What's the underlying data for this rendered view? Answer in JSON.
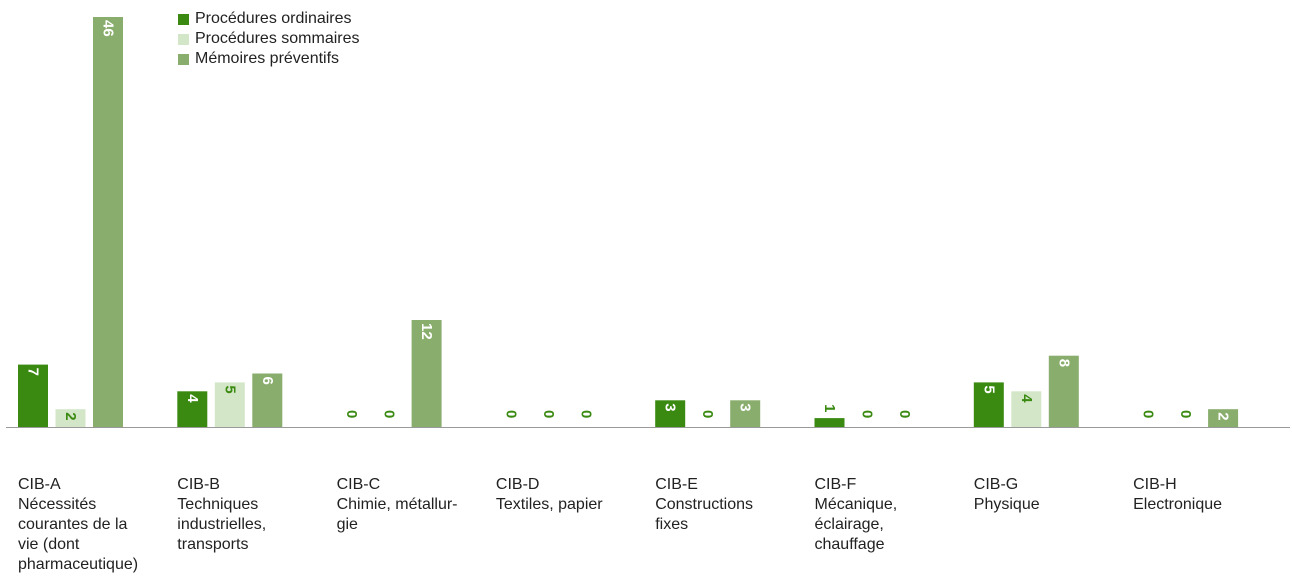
{
  "colors": {
    "ordinary": "#3a8a12",
    "summary": "#d4e6c8",
    "preventive": "#89ad6c",
    "axis": "#9a9a9a",
    "value_text_light": "#ffffff",
    "value_text_dark": "#3a8a12"
  },
  "chart_data": {
    "type": "bar",
    "categories": [
      [
        "CIB-A",
        "Nécessités",
        "courantes de la",
        "vie (dont",
        "pharmaceutique)"
      ],
      [
        "CIB-B",
        "Techniques",
        "industrielles,",
        "transports"
      ],
      [
        "CIB-C",
        "Chimie, métallur-",
        "gie"
      ],
      [
        "CIB-D",
        "Textiles, papier"
      ],
      [
        "CIB-E",
        "Constructions",
        "fixes"
      ],
      [
        "CIB-F",
        "Mécanique,",
        "éclairage,",
        "chauffage"
      ],
      [
        "CIB-G",
        "Physique"
      ],
      [
        "CIB-H",
        "Electronique"
      ]
    ],
    "series": [
      {
        "name": "Procédures ordinaires",
        "values": [
          7,
          4,
          0,
          0,
          3,
          1,
          5,
          0
        ]
      },
      {
        "name": "Procédures sommaires",
        "values": [
          2,
          5,
          0,
          0,
          0,
          0,
          4,
          0
        ]
      },
      {
        "name": "Mémoires préventifs",
        "values": [
          46,
          6,
          12,
          0,
          3,
          0,
          8,
          2
        ]
      }
    ],
    "ylim": [
      0,
      46
    ],
    "grid": false,
    "legend_position": "top"
  }
}
